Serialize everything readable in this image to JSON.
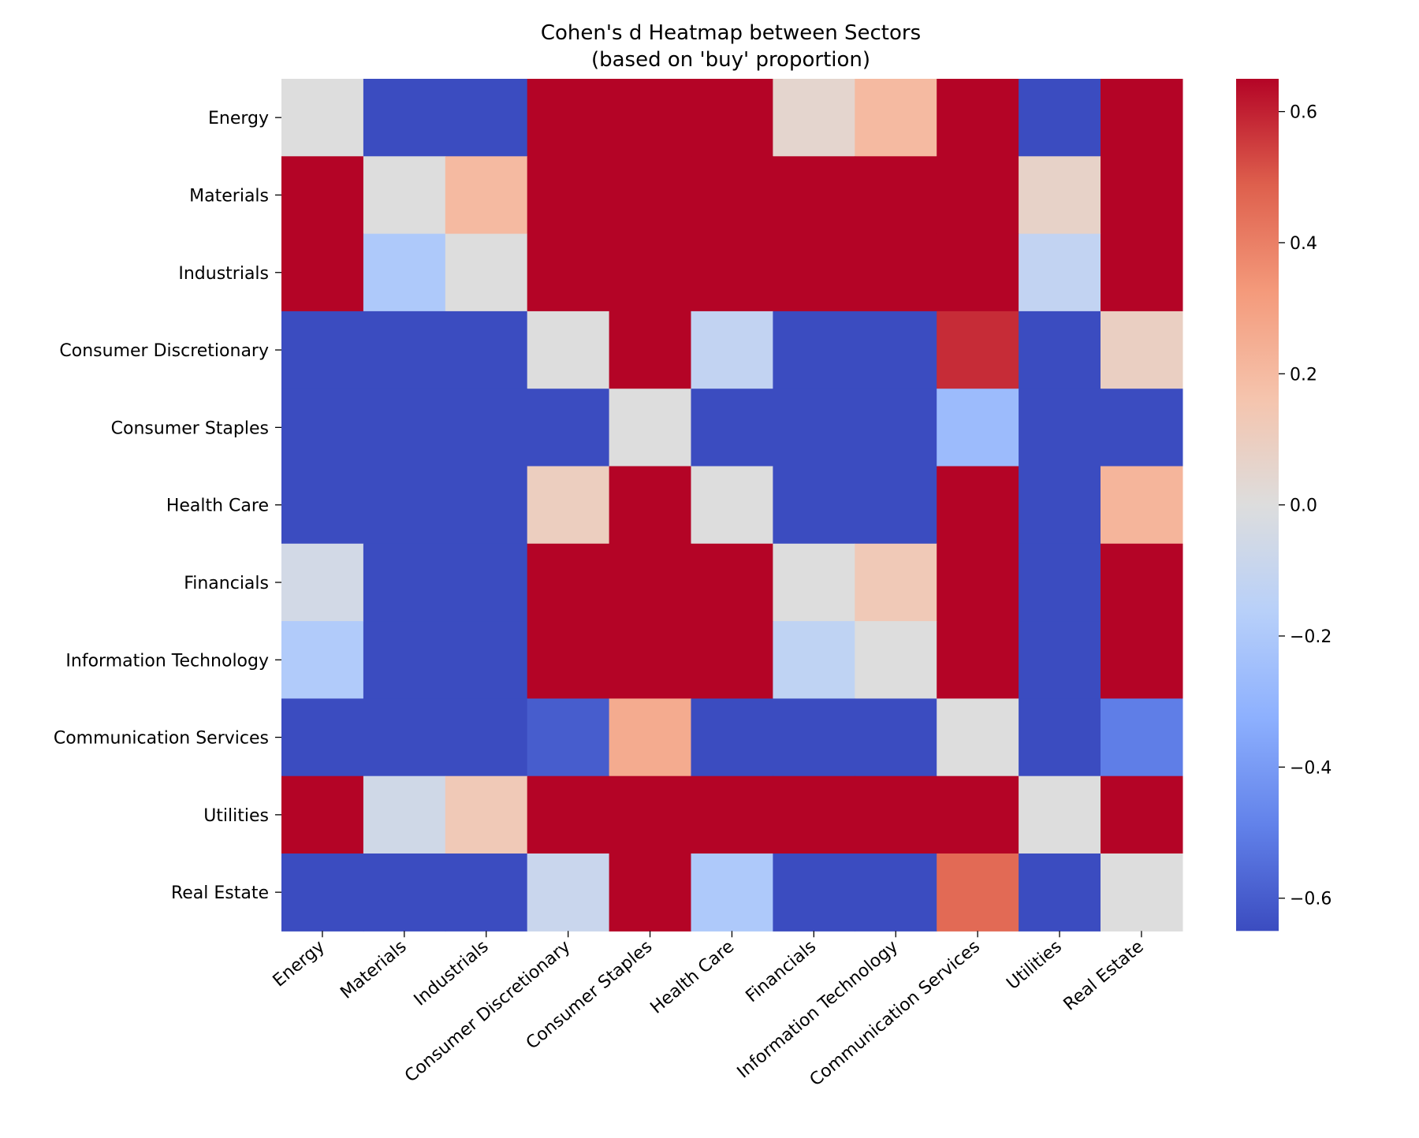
{
  "chart_data": {
    "type": "heatmap",
    "title_line1": "Cohen's d Heatmap between Sectors",
    "title_line2": "(based on 'buy' proportion)",
    "xlabel": "",
    "ylabel": "",
    "rows": [
      "Energy",
      "Materials",
      "Industrials",
      "Consumer Discretionary",
      "Consumer Staples",
      "Health Care",
      "Financials",
      "Information Technology",
      "Communication Services",
      "Utilities",
      "Real Estate"
    ],
    "columns": [
      "Energy",
      "Materials",
      "Industrials",
      "Consumer Discretionary",
      "Consumer Staples",
      "Health Care",
      "Financials",
      "Information Technology",
      "Communication Services",
      "Utilities",
      "Real Estate"
    ],
    "values": [
      [
        0.0,
        -0.65,
        -0.65,
        0.65,
        0.65,
        0.65,
        0.05,
        0.2,
        0.65,
        -0.65,
        0.65
      ],
      [
        0.65,
        0.0,
        0.2,
        0.65,
        0.65,
        0.65,
        0.65,
        0.65,
        0.65,
        0.07,
        0.65
      ],
      [
        0.65,
        -0.2,
        0.0,
        0.65,
        0.65,
        0.65,
        0.65,
        0.65,
        0.65,
        -0.12,
        0.65
      ],
      [
        -0.65,
        -0.65,
        -0.65,
        0.0,
        0.65,
        -0.12,
        -0.65,
        -0.65,
        0.58,
        -0.65,
        0.09
      ],
      [
        -0.65,
        -0.65,
        -0.65,
        -0.65,
        0.0,
        -0.65,
        -0.65,
        -0.65,
        -0.27,
        -0.65,
        -0.65
      ],
      [
        -0.65,
        -0.65,
        -0.65,
        0.1,
        0.65,
        0.0,
        -0.65,
        -0.65,
        0.65,
        -0.65,
        0.22
      ],
      [
        -0.05,
        -0.65,
        -0.65,
        0.65,
        0.65,
        0.65,
        0.0,
        0.13,
        0.65,
        -0.65,
        0.65
      ],
      [
        -0.19,
        -0.65,
        -0.65,
        0.65,
        0.65,
        0.65,
        -0.13,
        0.0,
        0.65,
        -0.65,
        0.65
      ],
      [
        -0.65,
        -0.65,
        -0.65,
        -0.6,
        0.26,
        -0.65,
        -0.65,
        -0.65,
        0.0,
        -0.65,
        -0.5
      ],
      [
        0.65,
        -0.06,
        0.13,
        0.65,
        0.65,
        0.65,
        0.65,
        0.65,
        0.65,
        0.0,
        0.65
      ],
      [
        -0.65,
        -0.65,
        -0.65,
        -0.09,
        0.65,
        -0.2,
        -0.65,
        -0.65,
        0.46,
        -0.65,
        0.0
      ]
    ],
    "colormap": "coolwarm",
    "vmin": -0.65,
    "vmax": 0.65,
    "colorbar_ticks": [
      0.6,
      0.4,
      0.2,
      0.0,
      -0.2,
      -0.4,
      -0.6
    ],
    "colorbar_tick_labels": [
      "0.6",
      "0.4",
      "0.2",
      "0.0",
      "−0.2",
      "−0.4",
      "−0.6"
    ]
  }
}
